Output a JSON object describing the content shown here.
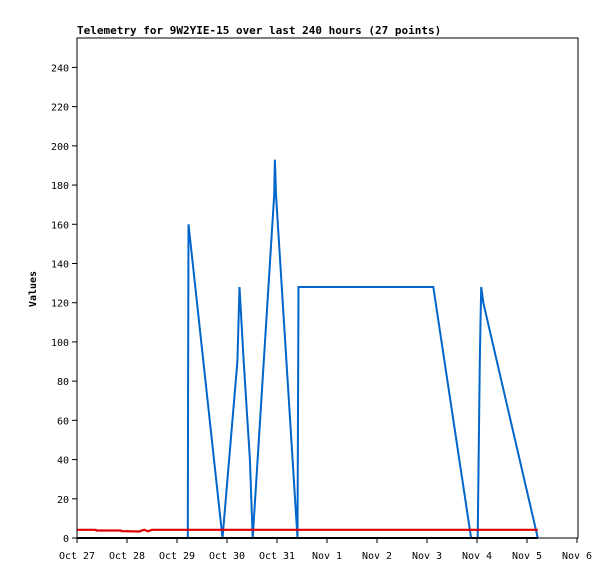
{
  "chart_data": {
    "type": "line",
    "title": "Telemetry for 9W2YIE-15 over last 240 hours (27 points)",
    "ylabel": "Values",
    "xlabel": "",
    "x_tick_labels": [
      "Oct 27",
      "Oct 28",
      "Oct 29",
      "Oct 30",
      "Oct 31",
      "Nov 1",
      "Nov 2",
      "Nov 3",
      "Nov 4",
      "Nov 5",
      "Nov 6"
    ],
    "x_range_days": [
      0,
      10
    ],
    "ylim": [
      0,
      255
    ],
    "y_ticks": [
      0,
      20,
      40,
      60,
      80,
      100,
      120,
      140,
      160,
      180,
      200,
      220,
      240
    ],
    "grid": false,
    "legend": "none",
    "series": [
      {
        "color": "#0066cc",
        "points": [
          {
            "x": "Oct 27 00:10",
            "y": 0
          },
          {
            "x": "Oct 29 05:10",
            "y": 0
          },
          {
            "x": "Oct 29 05:20",
            "y": 80
          },
          {
            "x": "Oct 29 05:30",
            "y": 160
          },
          {
            "x": "Oct 29 21:50",
            "y": 0
          },
          {
            "x": "Oct 30 05:00",
            "y": 90
          },
          {
            "x": "Oct 30 06:00",
            "y": 128
          },
          {
            "x": "Oct 30 08:00",
            "y": 90
          },
          {
            "x": "Oct 30 11:00",
            "y": 40
          },
          {
            "x": "Oct 30 12:20",
            "y": 0
          },
          {
            "x": "Oct 30 22:40",
            "y": 175
          },
          {
            "x": "Oct 30 23:00",
            "y": 193
          },
          {
            "x": "Oct 30 23:30",
            "y": 175
          },
          {
            "x": "Oct 31 09:50",
            "y": 0
          },
          {
            "x": "Oct 31 10:20",
            "y": 128
          },
          {
            "x": "Nov 3 03:00",
            "y": 128
          },
          {
            "x": "Nov 3 21:10",
            "y": 0
          },
          {
            "x": "Nov 4 00:20",
            "y": 0
          },
          {
            "x": "Nov 4 01:20",
            "y": 90
          },
          {
            "x": "Nov 4 01:40",
            "y": 110
          },
          {
            "x": "Nov 4 02:00",
            "y": 128
          },
          {
            "x": "Nov 4 03:00",
            "y": 120
          },
          {
            "x": "Nov 5 05:10",
            "y": 0
          }
        ]
      },
      {
        "color": "#dd0000",
        "points": [
          {
            "x": "Oct 27 00:10",
            "y": 4.2
          },
          {
            "x": "Oct 27 09:00",
            "y": 4.2
          },
          {
            "x": "Oct 27 09:20",
            "y": 3.8
          },
          {
            "x": "Oct 27 21:00",
            "y": 3.8
          },
          {
            "x": "Oct 27 21:20",
            "y": 3.5
          },
          {
            "x": "Oct 28 06:00",
            "y": 3.3
          },
          {
            "x": "Oct 28 07:00",
            "y": 3.8
          },
          {
            "x": "Oct 28 08:20",
            "y": 4.2
          },
          {
            "x": "Oct 28 10:00",
            "y": 3.4
          },
          {
            "x": "Oct 28 12:00",
            "y": 4.2
          },
          {
            "x": "Nov 5 05:10",
            "y": 4.2
          }
        ]
      },
      {
        "color": "#000000",
        "points": [
          {
            "x": "Oct 27 00:10",
            "y": 0
          },
          {
            "x": "Nov 5 05:10",
            "y": 0
          }
        ]
      }
    ]
  }
}
